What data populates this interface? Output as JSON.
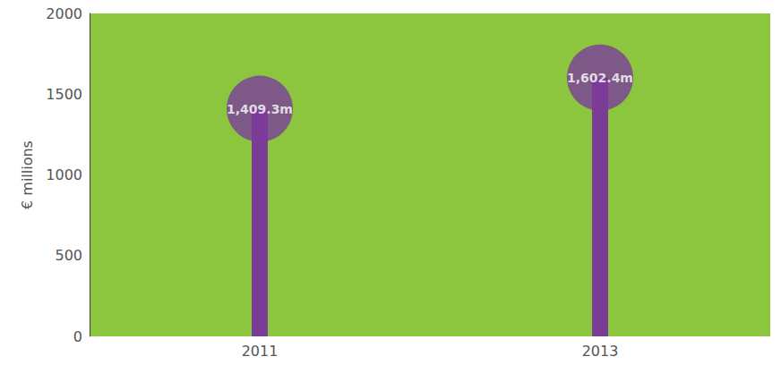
{
  "chart_data": {
    "type": "bar",
    "categories": [
      "2011",
      "2013"
    ],
    "values": [
      1409.3,
      1602.4
    ],
    "value_labels": [
      "1,409.3m",
      "1,602.4m"
    ],
    "color": "#7b3c98",
    "ylim": [
      0,
      2000
    ],
    "yticks": [
      0,
      500,
      1000,
      1500,
      2000
    ],
    "y_label": "€ millions",
    "grid": false,
    "data_labels": true,
    "marker": "circle"
  }
}
